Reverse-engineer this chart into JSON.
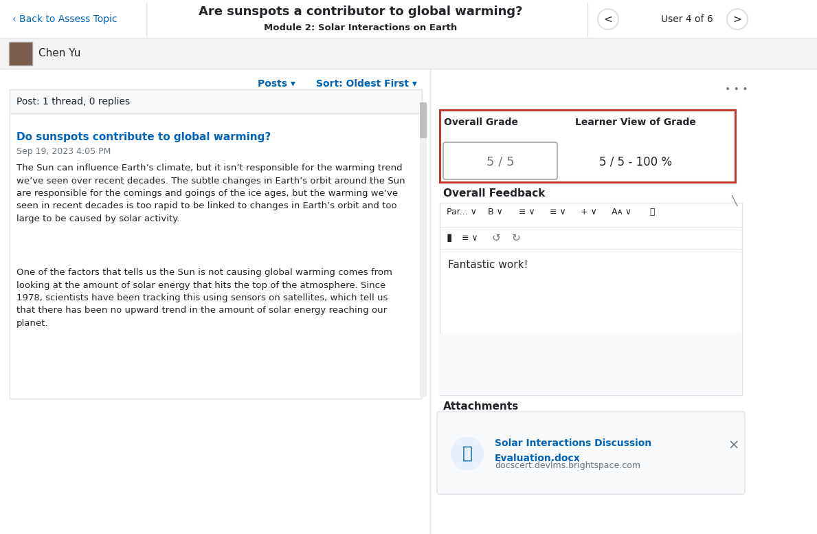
{
  "title": "Are sunspots a contributor to global warming?",
  "subtitle": "Module 2: Solar Interactions on Earth",
  "back_link": "‹ Back to Assess Topic",
  "user_nav": "User 4 of 6",
  "user_name": "Chen Yu",
  "posts_label": "Posts ▾",
  "sort_label": "Sort: Oldest First ▾",
  "post_summary": "Post: 1 thread, 0 replies",
  "post_title": "Do sunspots contribute to global warming?",
  "post_date": "Sep 19, 2023 4:05 PM",
  "post_body1": "The Sun can influence Earth’s climate, but it isn’t responsible for the warming trend\nwe’ve seen over recent decades. The subtle changes in Earth’s orbit around the Sun\nare responsible for the comings and goings of the ice ages, but the warming we’ve\nseen in recent decades is too rapid to be linked to changes in Earth’s orbit and too\nlarge to be caused by solar activity.",
  "post_body2": "One of the factors that tells us the Sun is not causing global warming comes from\nlooking at the amount of solar energy that hits the top of the atmosphere. Since\n1978, scientists have been tracking this using sensors on satellites, which tell us\nthat there has been no upward trend in the amount of solar energy reaching our\nplanet.",
  "overall_grade_label": "Overall Grade",
  "learner_view_label": "Learner View of Grade",
  "grade_value": "5 / 5",
  "learner_grade_value": "5 / 5 - 100 %",
  "overall_feedback_label": "Overall Feedback",
  "feedback_text": "Fantastic work!",
  "attachments_label": "Attachments",
  "attachment_name": "Solar Interactions Discussion\nEvaluation.docx",
  "attachment_url": "docscert.devlms.brightspace.com",
  "bg_color": "#ffffff",
  "header_bg": "#ffffff",
  "border_color": "#dee2e6",
  "blue_link": "#0062b8",
  "text_dark": "#212529",
  "text_muted": "#6c757d",
  "red_border": "#c0392b",
  "input_bg": "#ffffff",
  "toolbar_bg": "#f8f9fa",
  "attachment_bg": "#f8f9fa",
  "divider_color": "#ced4da",
  "scrollbar_color": "#c0c0c0"
}
